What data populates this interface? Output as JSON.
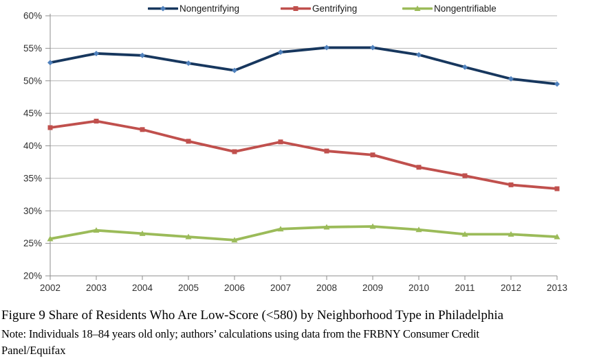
{
  "chart_data": {
    "type": "line",
    "title": "",
    "x": [
      2002,
      2003,
      2004,
      2005,
      2006,
      2007,
      2008,
      2009,
      2010,
      2011,
      2012,
      2013
    ],
    "x_tick_labels": [
      "2002",
      "2003",
      "2004",
      "2005",
      "2006",
      "2007",
      "2008",
      "2009",
      "2010",
      "2011",
      "2012",
      "2013"
    ],
    "ylim": [
      20,
      60
    ],
    "y_ticks": [
      20,
      25,
      30,
      35,
      40,
      45,
      50,
      55,
      60
    ],
    "y_tick_suffix": "%",
    "grid": "horizontal",
    "legend_position": "top",
    "series": [
      {
        "name": "Nongentrifying",
        "color": "#17375E",
        "marker": "diamond",
        "marker_color": "#4F81BD",
        "values": [
          52.8,
          54.2,
          53.9,
          52.7,
          51.6,
          54.4,
          55.1,
          55.1,
          54.0,
          52.1,
          50.3,
          49.5
        ]
      },
      {
        "name": "Gentrifying",
        "color": "#C0504D",
        "marker": "square",
        "marker_color": "#C0504D",
        "values": [
          42.8,
          43.8,
          42.5,
          40.7,
          39.1,
          40.6,
          39.2,
          38.6,
          36.7,
          35.4,
          34.0,
          33.4
        ]
      },
      {
        "name": "Nongentrifiable",
        "color": "#9BBB59",
        "marker": "triangle",
        "marker_color": "#9BBB59",
        "values": [
          25.7,
          27.0,
          26.5,
          26.0,
          25.5,
          27.2,
          27.5,
          27.6,
          27.1,
          26.4,
          26.4,
          26.0
        ]
      }
    ]
  },
  "caption": {
    "text": "Figure 9 Share of Residents Who Are Low-Score (<580) by Neighborhood Type in Philadelphia"
  },
  "note": {
    "line1": "Note: Individuals 18–84 years old only; authors’ calculations using data from the FRBNY Consumer Credit",
    "line2": "Panel/Equifax"
  },
  "colors": {
    "gridline": "#B4B4B4",
    "axis": "#8E8E8E",
    "tick_label": "#303030"
  }
}
